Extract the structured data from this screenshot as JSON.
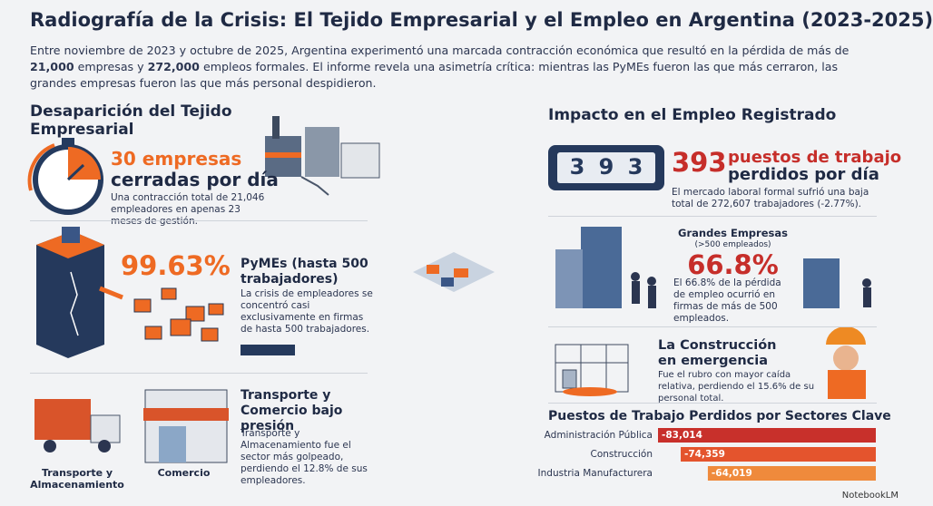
{
  "header": {
    "title": "Radiografía de la Crisis: El Tejido Empresarial y el Empleo en Argentina (2023-2025)",
    "intro": [
      "Entre noviembre de 2023 y octubre de 2025, Argentina experimentó una marcada contracción económica que resultó en la pérdida de más de ",
      "21,000",
      " empresas y ",
      "272,000",
      " empleos formales. El informe revela una asimetría crítica: mientras las PyMEs fueron las que más cerraron, las grandes empresas fueron las que más personal despidieron."
    ]
  },
  "business": {
    "heading": "Desaparición del Tejido Empresarial",
    "daily": {
      "highlight": "30 empresas",
      "label": "cerradas por día",
      "text": "Una contracción total de 21,046 empleadores en apenas 23 meses de gestión."
    },
    "pymes": {
      "value": "99.63%",
      "title": "PyMEs (hasta 500 trabajadores)",
      "text": "La crisis de empleadores se concentró casi exclusivamente en firmas de hasta 500 trabajadores."
    },
    "sectors": {
      "transport_label": "Transporte y Almacenamiento",
      "commerce_label": "Comercio",
      "title": "Transporte y Comercio bajo presión",
      "text": "Transporte y Almacenamiento fue el sector más golpeado, perdiendo el 12.8% de sus empleadores."
    }
  },
  "employment": {
    "heading": "Impacto en el Empleo Registrado",
    "daily": {
      "counter": [
        "3",
        "9",
        "3"
      ],
      "number": "393",
      "label_top": "puestos de trabajo",
      "label_bottom": "perdidos por día",
      "text": "El mercado laboral formal sufrió una baja total de 272,607 trabajadores (-2.77%)."
    },
    "large": {
      "title": "Grandes Empresas",
      "subtitle": "(>500 empleados)",
      "value": "66.8%",
      "text": "El 66.8% de la pérdida de empleo ocurrió en firmas de más de 500 empleados."
    },
    "construction": {
      "title": "La Construcción en emergencia",
      "text": "Fue el rubro con mayor caída relativa, perdiendo el 15.6% de su personal total."
    }
  },
  "sector_chart": {
    "type": "bar",
    "title": "Puestos de Trabajo Perdidos por Sectores Clave",
    "categories": [
      "Administración Pública",
      "Construcción",
      "Industria Manufacturera"
    ],
    "values": [
      -83014,
      -74359,
      -64019
    ],
    "value_labels": [
      "-83,014",
      "-74,359",
      "-64,019"
    ],
    "colors": [
      "#c8302b",
      "#e4542d",
      "#ef8a3c"
    ]
  },
  "footer": {
    "brand": "NotebookLM"
  }
}
